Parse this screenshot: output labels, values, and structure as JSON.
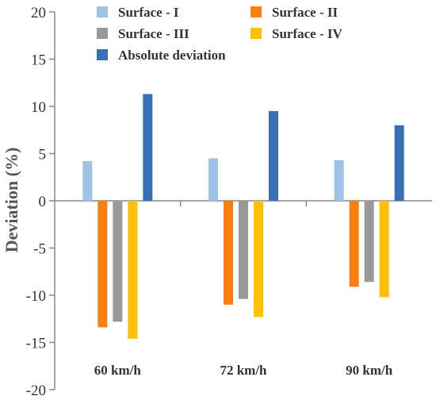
{
  "chart_data": {
    "type": "bar",
    "title": "",
    "xlabel": "",
    "ylabel": "Deviation (%)",
    "ylim": [
      -20,
      20
    ],
    "yticks": [
      20,
      15,
      10,
      5,
      0,
      -5,
      -10,
      -15,
      -20
    ],
    "grid": false,
    "legend_position": "top",
    "categories": [
      "60 km/h",
      "72 km/h",
      "90 km/h"
    ],
    "series": [
      {
        "name": "Surface - I",
        "color": "#9dc3e6",
        "values": [
          4.2,
          4.5,
          4.3
        ]
      },
      {
        "name": "Surface - II",
        "color": "#ff7f0e",
        "values": [
          -13.4,
          -11.0,
          -9.1
        ]
      },
      {
        "name": "Surface - III",
        "color": "#999999",
        "values": [
          -12.8,
          -10.4,
          -8.6
        ]
      },
      {
        "name": "Surface - IV",
        "color": "#ffc000",
        "values": [
          -14.6,
          -12.3,
          -10.2
        ]
      },
      {
        "name": "Absolute deviation",
        "color": "#3a6fb5",
        "values": [
          11.3,
          9.5,
          8.0
        ]
      }
    ]
  }
}
